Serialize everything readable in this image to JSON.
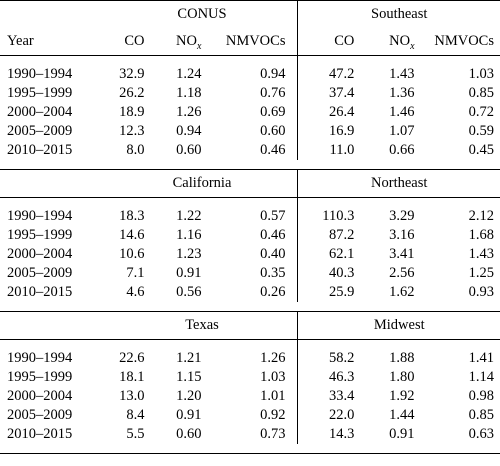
{
  "headers": {
    "year": "Year",
    "co": "CO",
    "nox_base": "NO",
    "nox_sub": "x",
    "nmvocs": "NMVOCs"
  },
  "blocks": [
    {
      "left_region": "CONUS",
      "right_region": "Southeast",
      "rows": [
        {
          "year": "1990–1994",
          "l": [
            "32.9",
            "1.24",
            "0.94"
          ],
          "r": [
            "47.2",
            "1.43",
            "1.03"
          ]
        },
        {
          "year": "1995–1999",
          "l": [
            "26.2",
            "1.18",
            "0.76"
          ],
          "r": [
            "37.4",
            "1.36",
            "0.85"
          ]
        },
        {
          "year": "2000–2004",
          "l": [
            "18.9",
            "1.26",
            "0.69"
          ],
          "r": [
            "26.4",
            "1.46",
            "0.72"
          ]
        },
        {
          "year": "2005–2009",
          "l": [
            "12.3",
            "0.94",
            "0.60"
          ],
          "r": [
            "16.9",
            "1.07",
            "0.59"
          ]
        },
        {
          "year": "2010–2015",
          "l": [
            "8.0",
            "0.60",
            "0.46"
          ],
          "r": [
            "11.0",
            "0.66",
            "0.45"
          ]
        }
      ]
    },
    {
      "left_region": "California",
      "right_region": "Northeast",
      "rows": [
        {
          "year": "1990–1994",
          "l": [
            "18.3",
            "1.22",
            "0.57"
          ],
          "r": [
            "110.3",
            "3.29",
            "2.12"
          ]
        },
        {
          "year": "1995–1999",
          "l": [
            "14.6",
            "1.16",
            "0.46"
          ],
          "r": [
            "87.2",
            "3.16",
            "1.68"
          ]
        },
        {
          "year": "2000–2004",
          "l": [
            "10.6",
            "1.23",
            "0.40"
          ],
          "r": [
            "62.1",
            "3.41",
            "1.43"
          ]
        },
        {
          "year": "2005–2009",
          "l": [
            "7.1",
            "0.91",
            "0.35"
          ],
          "r": [
            "40.3",
            "2.56",
            "1.25"
          ]
        },
        {
          "year": "2010–2015",
          "l": [
            "4.6",
            "0.56",
            "0.26"
          ],
          "r": [
            "25.9",
            "1.62",
            "0.93"
          ]
        }
      ]
    },
    {
      "left_region": "Texas",
      "right_region": "Midwest",
      "rows": [
        {
          "year": "1990–1994",
          "l": [
            "22.6",
            "1.21",
            "1.26"
          ],
          "r": [
            "58.2",
            "1.88",
            "1.41"
          ]
        },
        {
          "year": "1995–1999",
          "l": [
            "18.1",
            "1.15",
            "1.03"
          ],
          "r": [
            "46.3",
            "1.80",
            "1.14"
          ]
        },
        {
          "year": "2000–2004",
          "l": [
            "13.0",
            "1.20",
            "1.01"
          ],
          "r": [
            "33.4",
            "1.92",
            "0.98"
          ]
        },
        {
          "year": "2005–2009",
          "l": [
            "8.4",
            "0.91",
            "0.92"
          ],
          "r": [
            "22.0",
            "1.44",
            "0.85"
          ]
        },
        {
          "year": "2010–2015",
          "l": [
            "5.5",
            "0.60",
            "0.73"
          ],
          "r": [
            "14.3",
            "0.91",
            "0.63"
          ]
        }
      ]
    }
  ]
}
